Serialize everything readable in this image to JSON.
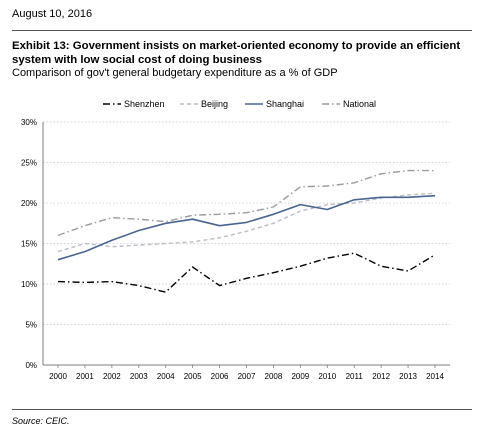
{
  "header": {
    "date": "August 10, 2016"
  },
  "exhibit": {
    "title": "Exhibit 13: Government insists on market-oriented economy to provide an efficient system with low social cost of doing business",
    "subtitle": "Comparison of gov't general budgetary expenditure as a % of GDP"
  },
  "footer": {
    "source": "Source: CEIC."
  },
  "colors": {
    "shenzhen": "#000000",
    "beijing": "#bcbcc6",
    "shanghai": "#4a6591",
    "national": "#9a9aa0",
    "grid": "#c8c8c8",
    "axis": "#7f7f7f"
  },
  "chart_data": {
    "type": "line",
    "categories": [
      "2000",
      "2001",
      "2002",
      "2003",
      "2004",
      "2005",
      "2006",
      "2007",
      "2008",
      "2009",
      "2010",
      "2011",
      "2012",
      "2013",
      "2014"
    ],
    "y_ticks": [
      "0%",
      "5%",
      "10%",
      "15%",
      "20%",
      "25%",
      "30%"
    ],
    "ylim": [
      0,
      30
    ],
    "grid": true,
    "legend_position": "top",
    "series": [
      {
        "name": "Shenzhen",
        "color_key": "shenzhen",
        "dash": "dash-dot",
        "values": [
          10.3,
          10.2,
          10.3,
          9.8,
          9.0,
          12.1,
          9.8,
          10.7,
          11.4,
          12.2,
          13.2,
          13.8,
          12.2,
          11.6,
          13.6
        ]
      },
      {
        "name": "Beijing",
        "color_key": "beijing",
        "dash": "dashed",
        "values": [
          14.0,
          15.0,
          14.6,
          14.8,
          15.0,
          15.2,
          15.7,
          16.5,
          17.5,
          19.0,
          19.8,
          20.0,
          20.6,
          21.0,
          21.2
        ]
      },
      {
        "name": "Shanghai",
        "color_key": "shanghai",
        "dash": "solid",
        "values": [
          13.0,
          14.0,
          15.4,
          16.6,
          17.5,
          18.0,
          17.2,
          17.6,
          18.6,
          19.8,
          19.2,
          20.4,
          20.7,
          20.7,
          20.9
        ]
      },
      {
        "name": "National",
        "color_key": "national",
        "dash": "dash-dot",
        "values": [
          16.0,
          17.2,
          18.2,
          18.0,
          17.7,
          18.5,
          18.6,
          18.8,
          19.5,
          22.0,
          22.1,
          22.5,
          23.6,
          24.0,
          24.0
        ]
      }
    ]
  }
}
